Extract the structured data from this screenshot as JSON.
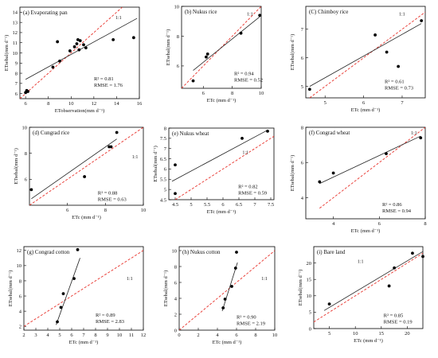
{
  "figure": {
    "width": 550,
    "height": 450
  },
  "chart_data": [
    {
      "type": "scatter",
      "title": "(a) Evaporating pan",
      "xlabel": "ETobservation(mm d⁻¹)",
      "ylabel": "ETsebal(mm d⁻¹)",
      "xlim": [
        5.5,
        16
      ],
      "ylim": [
        5.5,
        14.5
      ],
      "xticks": [
        6,
        8,
        10,
        12,
        14,
        16
      ],
      "yticks": [
        6,
        7,
        8,
        9,
        10,
        11,
        12,
        13,
        14
      ],
      "points": [
        [
          6.0,
          6.1
        ],
        [
          6.1,
          6.3
        ],
        [
          6.2,
          6.2
        ],
        [
          8.4,
          8.6
        ],
        [
          8.8,
          11.1
        ],
        [
          9.0,
          9.2
        ],
        [
          9.9,
          10.2
        ],
        [
          10.3,
          10.6
        ],
        [
          10.5,
          10.9
        ],
        [
          10.6,
          11.3
        ],
        [
          10.7,
          10.3
        ],
        [
          10.8,
          11.2
        ],
        [
          11.1,
          10.8
        ],
        [
          11.3,
          10.5
        ],
        [
          13.7,
          11.3
        ],
        [
          15.5,
          11.5
        ]
      ],
      "fit": [
        [
          6.0,
          7.4
        ],
        [
          15.8,
          13.4
        ]
      ],
      "ref": [
        [
          5.5,
          5.5
        ],
        [
          14.5,
          14.5
        ]
      ],
      "r2": "R² = 0.81",
      "rmse": "RMSE = 1.76",
      "ref_label": "1:1"
    },
    {
      "type": "scatter",
      "title": "(b) Nukus rice",
      "xlabel": "ETc (mm d⁻¹)",
      "ylabel": "ETsebal(mm d⁻¹)",
      "xlim": [
        4.5,
        10
      ],
      "ylim": [
        4.5,
        10
      ],
      "xticks": [
        6,
        8,
        10
      ],
      "yticks": [
        6,
        8,
        10
      ],
      "points": [
        [
          5.3,
          5.0
        ],
        [
          6.2,
          6.6
        ],
        [
          6.3,
          6.8
        ],
        [
          8.6,
          8.2
        ],
        [
          9.9,
          9.4
        ]
      ],
      "fit": [
        [
          5.3,
          5.7
        ],
        [
          9.9,
          9.3
        ]
      ],
      "ref": [
        [
          4.5,
          4.5
        ],
        [
          10,
          10
        ]
      ],
      "r2": "R² = 0.94",
      "rmse": "RMSE = 0.52",
      "ref_label": "1:1"
    },
    {
      "type": "scatter",
      "title": "(C) Chimboy rice",
      "xlabel": "ETc (mm d⁻¹)",
      "ylabel": "ETsebal(mm d⁻¹)",
      "xlim": [
        4.5,
        7.6
      ],
      "ylim": [
        4.6,
        7.8
      ],
      "xticks": [
        5,
        6,
        7
      ],
      "yticks": [
        5,
        6,
        7
      ],
      "points": [
        [
          4.6,
          4.9
        ],
        [
          6.3,
          6.8
        ],
        [
          6.6,
          6.2
        ],
        [
          6.9,
          5.7
        ],
        [
          7.5,
          7.3
        ]
      ],
      "fit": [
        [
          4.6,
          5.0
        ],
        [
          7.5,
          7.2
        ]
      ],
      "ref": [
        [
          4.6,
          4.6
        ],
        [
          7.6,
          7.6
        ]
      ],
      "r2": "R² = 0.61",
      "rmse": "RMSE = 0.73",
      "ref_label": "1:1"
    },
    {
      "type": "scatter",
      "title": "(d) Cungrad rice",
      "xlabel": "ETc (mm d⁻¹)",
      "ylabel": "ETsebal(mm d⁻¹)",
      "xlim": [
        4,
        10
      ],
      "ylim": [
        4,
        10
      ],
      "xticks": [
        6,
        8,
        10
      ],
      "yticks": [
        6,
        8,
        10
      ],
      "points": [
        [
          4.1,
          5.2
        ],
        [
          6.9,
          6.2
        ],
        [
          8.2,
          8.5
        ],
        [
          8.3,
          8.5
        ],
        [
          8.6,
          9.6
        ]
      ],
      "fit": [
        [
          4.1,
          4.5
        ],
        [
          8.6,
          9.1
        ]
      ],
      "ref": [
        [
          4,
          4
        ],
        [
          10,
          10
        ]
      ],
      "r2": "R² = 0.88",
      "rmse": "RMSE = 0.63",
      "ref_label": "1:1"
    },
    {
      "type": "scatter",
      "title": "(e) Nukus wheat",
      "xlabel": "ETc (mm d⁻¹)",
      "ylabel": "ETsebal(mm d⁻¹)",
      "xlim": [
        4.3,
        7.6
      ],
      "ylim": [
        4.5,
        8.0
      ],
      "xticks": [
        4.5,
        5.0,
        5.5,
        6.0,
        6.5,
        7.0,
        7.5
      ],
      "yticks": [
        4.5,
        5.0,
        5.5,
        6.0,
        6.5,
        7.0,
        7.5,
        8.0
      ],
      "points": [
        [
          4.5,
          6.2
        ],
        [
          4.5,
          4.8
        ],
        [
          6.6,
          7.5
        ],
        [
          7.4,
          7.85
        ]
      ],
      "fit": [
        [
          4.4,
          5.4
        ],
        [
          7.4,
          7.9
        ]
      ],
      "ref": [
        [
          4.5,
          4.5
        ],
        [
          7.6,
          7.6
        ]
      ],
      "r2": "R² = 0.82",
      "rmse": "RMSE = 0.59",
      "ref_label": "1:1"
    },
    {
      "type": "scatter",
      "title": "(f) Congrad wheat",
      "xlabel": "ETc (mm d⁻¹)",
      "ylabel": "ETsebal(mm d⁻¹)",
      "xlim": [
        2.8,
        8
      ],
      "ylim": [
        2.8,
        8
      ],
      "xticks": [
        4,
        6,
        8
      ],
      "yticks": [
        4,
        6,
        8
      ],
      "points": [
        [
          3.4,
          4.9
        ],
        [
          4.0,
          5.4
        ],
        [
          6.3,
          6.5
        ],
        [
          7.8,
          7.4
        ]
      ],
      "fit": [
        [
          3.4,
          4.8
        ],
        [
          7.8,
          7.5
        ]
      ],
      "ref": [
        [
          3.4,
          3.4
        ],
        [
          8,
          8
        ]
      ],
      "r2": "R² = 0.86",
      "rmse": "RMSE = 0.94",
      "ref_label": "1:1"
    },
    {
      "type": "scatter",
      "title": "(g) Congrad cotton",
      "xlabel": "ETc (mm d⁻¹)",
      "ylabel": "ETsebal(mm d⁻¹)",
      "xlim": [
        2,
        12
      ],
      "ylim": [
        1.5,
        12.5
      ],
      "xticks": [
        2,
        3,
        4,
        5,
        6,
        7,
        8,
        9,
        10,
        11,
        12
      ],
      "yticks": [
        2,
        4,
        6,
        8,
        10,
        12
      ],
      "points": [
        [
          4.8,
          2.6
        ],
        [
          5.1,
          4.5
        ],
        [
          5.3,
          6.3
        ],
        [
          6.2,
          8.3
        ],
        [
          6.5,
          12.1
        ]
      ],
      "fit": [
        [
          4.7,
          2.2
        ],
        [
          6.7,
          11.0
        ]
      ],
      "ref": [
        [
          2,
          2
        ],
        [
          12,
          12
        ]
      ],
      "r2": "R² = 0.89",
      "rmse": "RMSE = 2.83",
      "ref_label": "1:1"
    },
    {
      "type": "scatter",
      "title": "(h) Nukus cotton",
      "xlabel": "ETc (mm d⁻¹)",
      "ylabel": "ETsebal(mm d⁻¹)",
      "xlim": [
        0,
        10
      ],
      "ylim": [
        0,
        10.5
      ],
      "xticks": [
        0,
        2,
        4,
        6,
        8,
        10
      ],
      "yticks": [
        0,
        2,
        4,
        6,
        8,
        10
      ],
      "points": [
        [
          4.6,
          2.8
        ],
        [
          4.8,
          3.9
        ],
        [
          5.5,
          5.5
        ],
        [
          5.9,
          7.8
        ],
        [
          6.0,
          9.8
        ]
      ],
      "fit": [
        [
          4.5,
          2.4
        ],
        [
          6.1,
          8.5
        ]
      ],
      "ref": [
        [
          0,
          0
        ],
        [
          10,
          10
        ]
      ],
      "r2": "R² = 0.90",
      "rmse": "RMSE = 2.19",
      "ref_label": "1:1"
    },
    {
      "type": "scatter",
      "title": "(i) Bare land",
      "xlabel": "ETc (mm d⁻¹)",
      "ylabel": "ETsebal(mm d⁻¹)",
      "xlim": [
        2,
        23
      ],
      "ylim": [
        0,
        25
      ],
      "xticks": [
        5,
        10,
        15,
        20
      ],
      "yticks": [
        0,
        5,
        10,
        15,
        20
      ],
      "points": [
        [
          5.0,
          7.5
        ],
        [
          16.5,
          13.0
        ],
        [
          17.5,
          18.5
        ],
        [
          21.0,
          23.0
        ],
        [
          23.0,
          22.0
        ]
      ],
      "fit": [
        [
          4.0,
          5.5
        ],
        [
          23.0,
          23.5
        ]
      ],
      "ref": [
        [
          2,
          2
        ],
        [
          23,
          23
        ]
      ],
      "r2": "R² = 0.85",
      "rmse": "RMSE = 0.19",
      "ref_label": "1:1"
    }
  ]
}
